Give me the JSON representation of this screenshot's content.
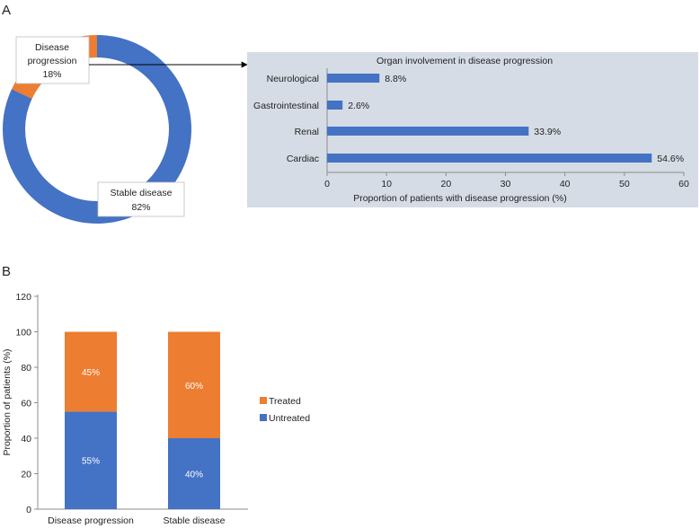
{
  "panel_a_letter": "A",
  "panel_b_letter": "B",
  "colors": {
    "blue": "#4472C4",
    "orange": "#ED7D31",
    "panel_bg": "#D6DCE5",
    "axis": "#8C8C8C"
  },
  "chart_data": [
    {
      "type": "pie",
      "variant": "donut",
      "slices": [
        {
          "name": "Disease progression",
          "value": 18,
          "color": "#ED7D31",
          "label_lines": [
            "Disease",
            "progression",
            "18%"
          ]
        },
        {
          "name": "Stable disease",
          "value": 82,
          "color": "#4472C4",
          "label_lines": [
            "Stable disease",
            "82%"
          ]
        }
      ]
    },
    {
      "type": "bar",
      "orientation": "horizontal",
      "title": "Organ involvement in disease progression",
      "categories": [
        "Neurological",
        "Gastrointestinal",
        "Renal",
        "Cardiac"
      ],
      "values": [
        8.8,
        2.6,
        33.9,
        54.6
      ],
      "value_labels": [
        "8.8%",
        "2.6%",
        "33.9%",
        "54.6%"
      ],
      "xlabel": "Proportion of patients with disease progression (%)",
      "xlim": [
        0,
        60
      ],
      "xticks": [
        0,
        10,
        20,
        30,
        40,
        50,
        60
      ],
      "color": "#4472C4"
    },
    {
      "type": "bar",
      "stacked": true,
      "categories": [
        "Disease progression",
        "Stable disease"
      ],
      "series": [
        {
          "name": "Untreated",
          "values": [
            55,
            40
          ],
          "labels": [
            "55%",
            "40%"
          ],
          "color": "#4472C4"
        },
        {
          "name": "Treated",
          "values": [
            45,
            60
          ],
          "labels": [
            "45%",
            "60%"
          ],
          "color": "#ED7D31"
        }
      ],
      "ylabel": "Proportion of patients (%)",
      "ylim": [
        0,
        120
      ],
      "yticks": [
        0,
        20,
        40,
        60,
        80,
        100,
        120
      ],
      "legend": [
        "Treated",
        "Untreated"
      ],
      "legend_position": "right"
    }
  ]
}
